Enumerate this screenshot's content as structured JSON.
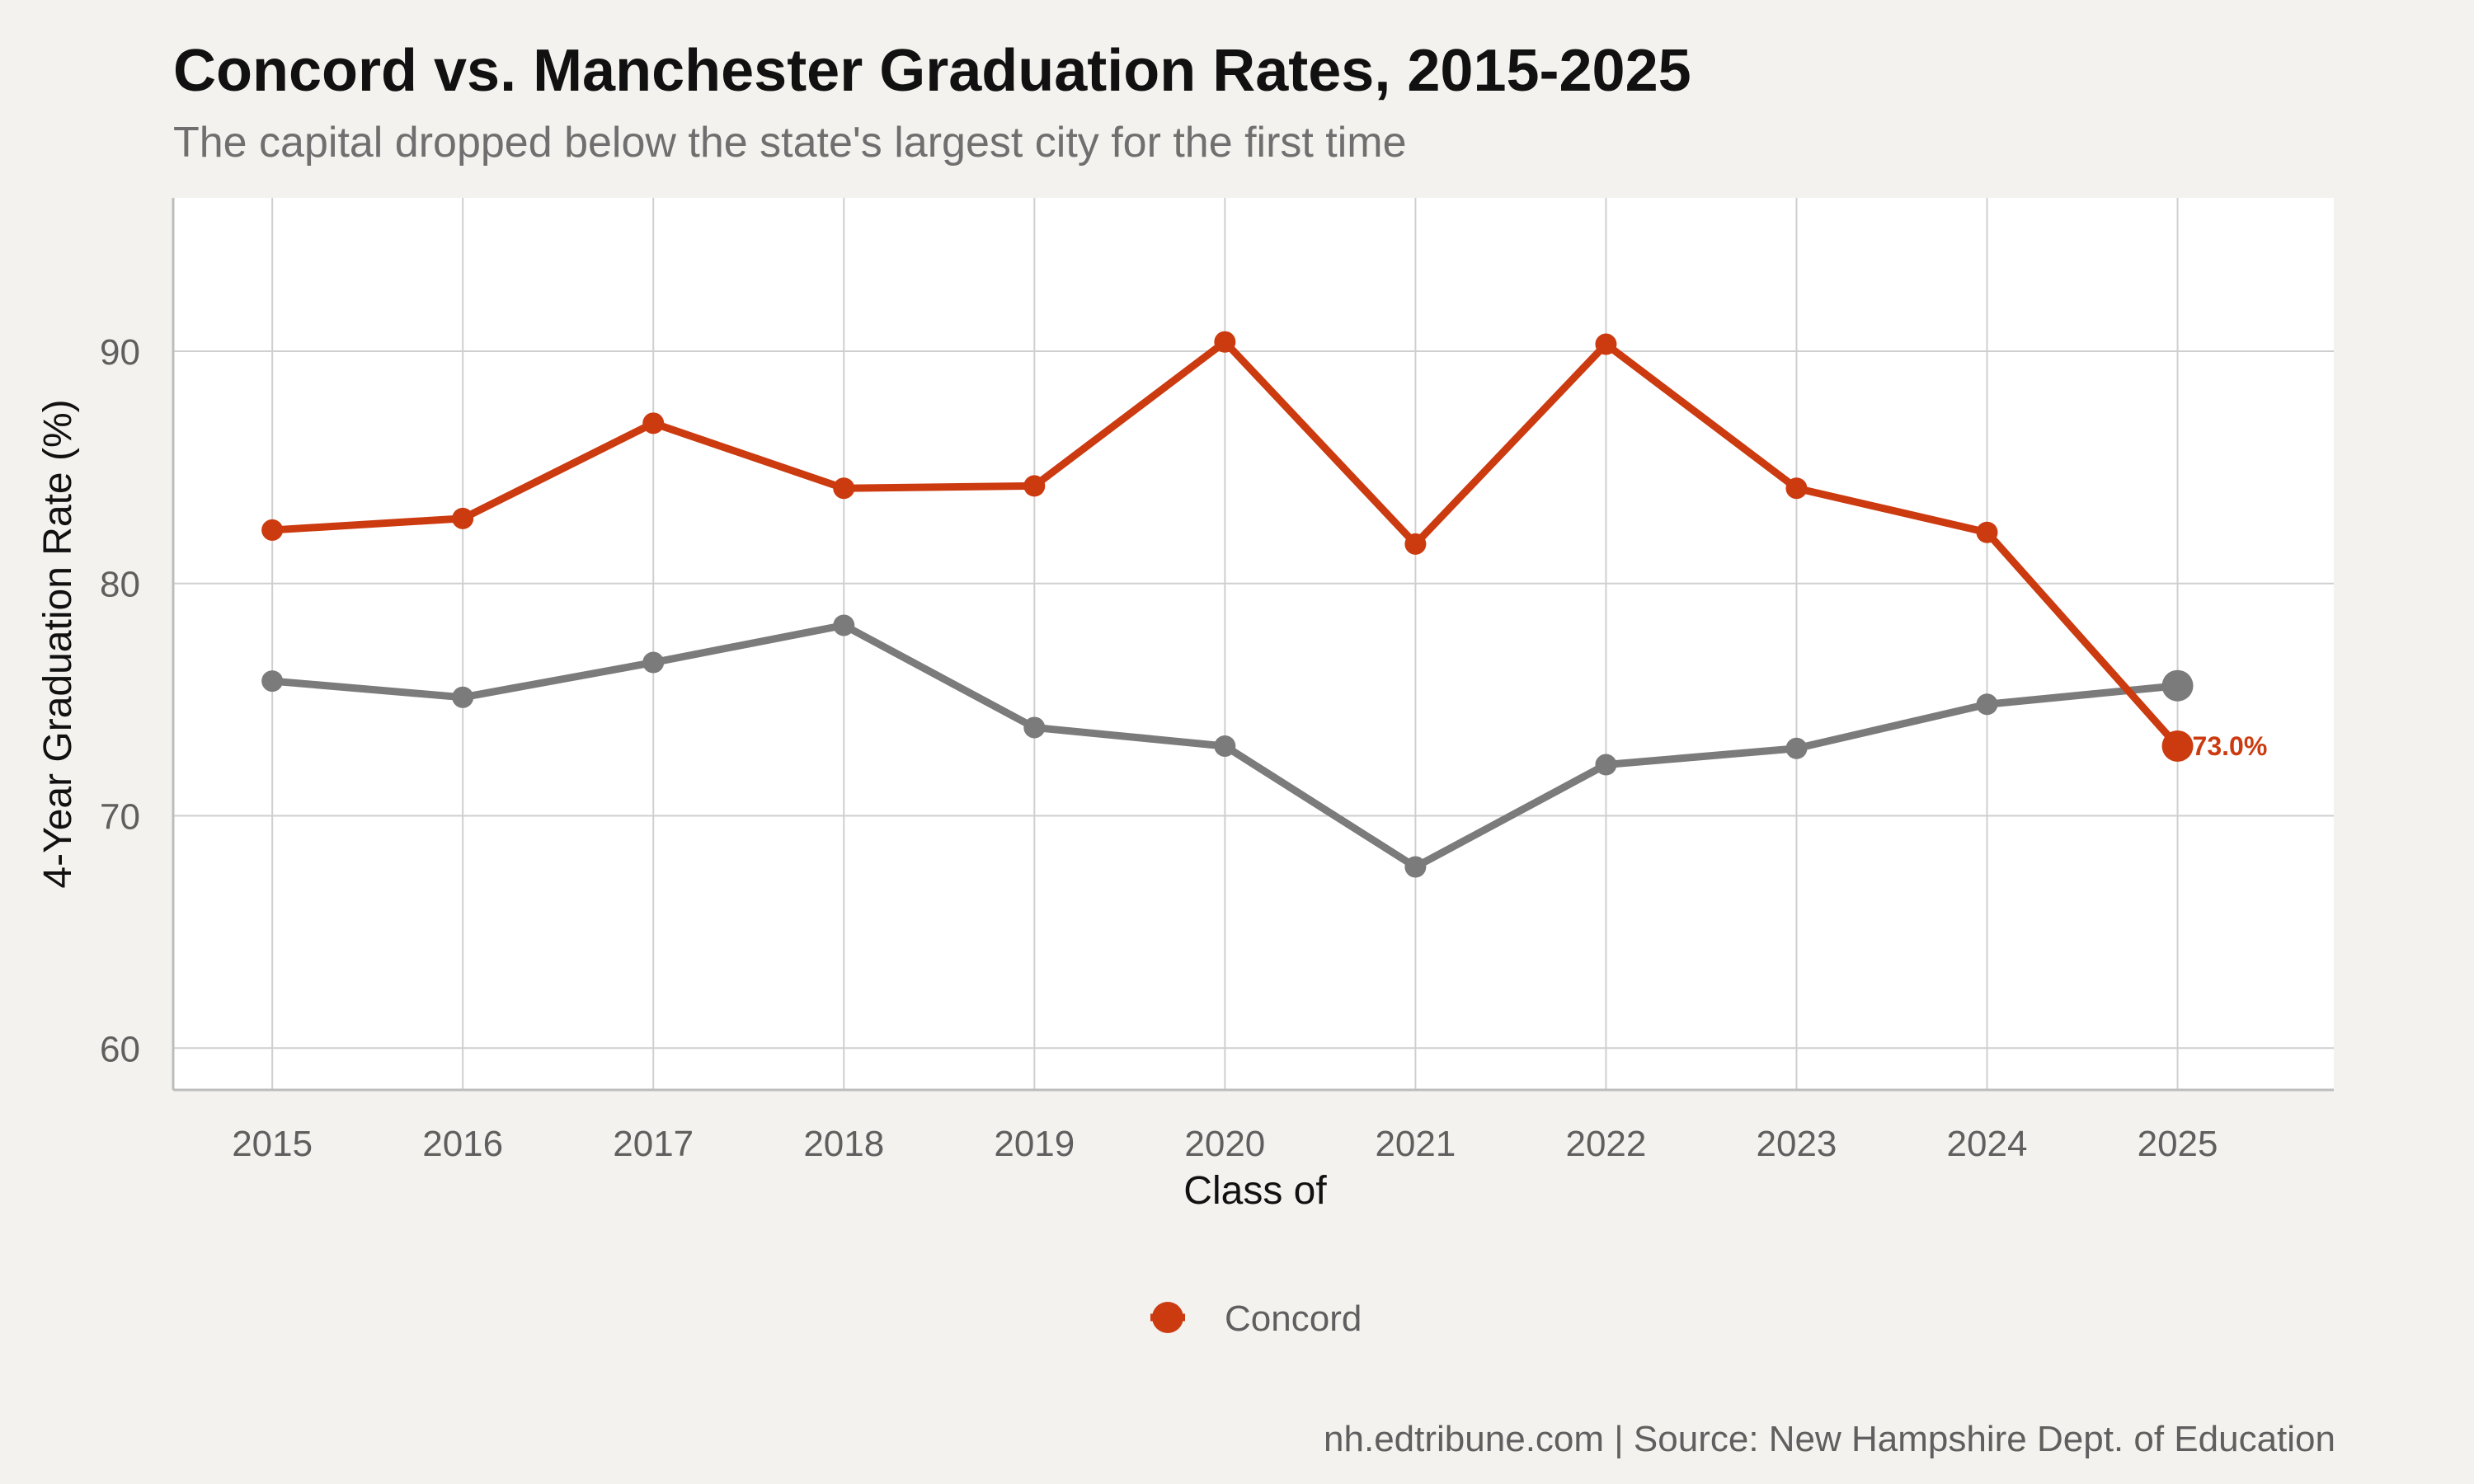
{
  "chart_data": {
    "type": "line",
    "title": "Concord vs. Manchester Graduation Rates, 2015-2025",
    "subtitle": "The capital dropped below the state's largest city for the first time",
    "xlabel": "Class of",
    "ylabel": "4-Year Graduation Rate (%)",
    "x": [
      2015,
      2016,
      2017,
      2018,
      2019,
      2020,
      2021,
      2022,
      2023,
      2024,
      2025
    ],
    "ylim": [
      58.2,
      96.6
    ],
    "yticks": [
      60,
      70,
      80,
      90
    ],
    "grid": true,
    "legend_position": "bottom",
    "caption": "nh.edtribune.com | Source: New Hampshire Dept. of Education",
    "series": [
      {
        "name": "Concord",
        "color": "#cc3a10",
        "in_legend": true,
        "values": [
          82.3,
          82.8,
          86.9,
          84.1,
          84.2,
          90.4,
          81.7,
          90.3,
          84.1,
          82.2,
          73.0
        ],
        "end_label": "73.0%"
      },
      {
        "name": "",
        "color": "#7b7b7b",
        "in_legend": false,
        "values": [
          75.8,
          75.1,
          76.6,
          78.2,
          73.8,
          73.0,
          67.8,
          72.2,
          72.9,
          74.8,
          75.6
        ]
      }
    ]
  }
}
